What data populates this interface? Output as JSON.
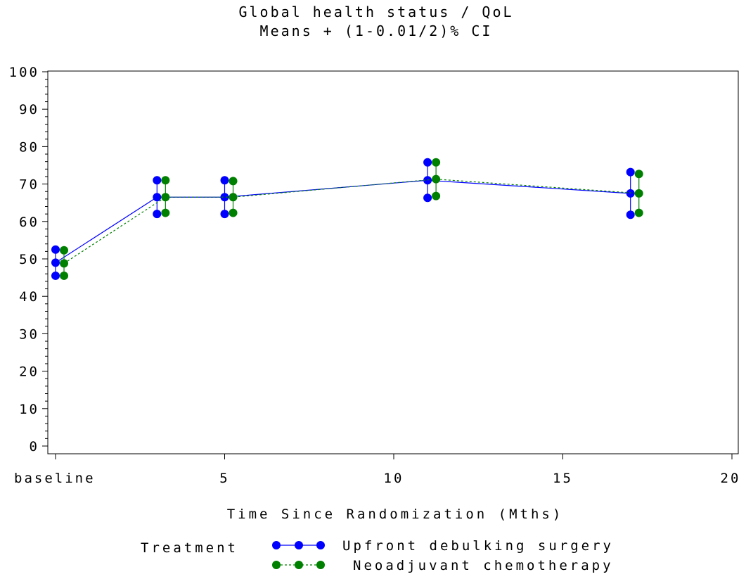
{
  "chart_data": {
    "type": "line",
    "title": "Global health status / QoL",
    "subtitle": "Means + (1-0.01/2)% CI",
    "xlabel": "Time Since Randomization (Mths)",
    "ylabel": "",
    "xlim": [
      0,
      20
    ],
    "ylim": [
      0,
      100
    ],
    "x_ticks": [
      {
        "value": 0,
        "label": "baseline"
      },
      {
        "value": 5,
        "label": "5"
      },
      {
        "value": 10,
        "label": "10"
      },
      {
        "value": 15,
        "label": "15"
      },
      {
        "value": 20,
        "label": "20"
      }
    ],
    "y_ticks": [
      0,
      10,
      20,
      30,
      40,
      50,
      60,
      70,
      80,
      90,
      100
    ],
    "legend": {
      "title": "Treatment",
      "placement": "bottom"
    },
    "grid": false,
    "series": [
      {
        "name": "Upfront debulking surgery",
        "color": "#0000ff",
        "line_style": "solid",
        "points": [
          {
            "x": 0,
            "mean": 49.0,
            "lower": 45.5,
            "upper": 52.5
          },
          {
            "x": 3,
            "mean": 66.5,
            "lower": 62.0,
            "upper": 71.0
          },
          {
            "x": 5,
            "mean": 66.5,
            "lower": 62.0,
            "upper": 71.0
          },
          {
            "x": 11,
            "mean": 71.0,
            "lower": 66.3,
            "upper": 75.8
          },
          {
            "x": 17,
            "mean": 67.5,
            "lower": 61.8,
            "upper": 73.2
          }
        ]
      },
      {
        "name": "Neoadjuvant chemotherapy",
        "color": "#008000",
        "line_style": "dashed",
        "points": [
          {
            "x": 0.25,
            "mean": 48.8,
            "lower": 45.5,
            "upper": 52.3
          },
          {
            "x": 3.25,
            "mean": 66.5,
            "lower": 62.3,
            "upper": 71.0
          },
          {
            "x": 5.25,
            "mean": 66.5,
            "lower": 62.3,
            "upper": 70.8
          },
          {
            "x": 11.25,
            "mean": 71.3,
            "lower": 66.8,
            "upper": 75.8
          },
          {
            "x": 17.25,
            "mean": 67.5,
            "lower": 62.3,
            "upper": 72.7
          }
        ]
      }
    ]
  }
}
